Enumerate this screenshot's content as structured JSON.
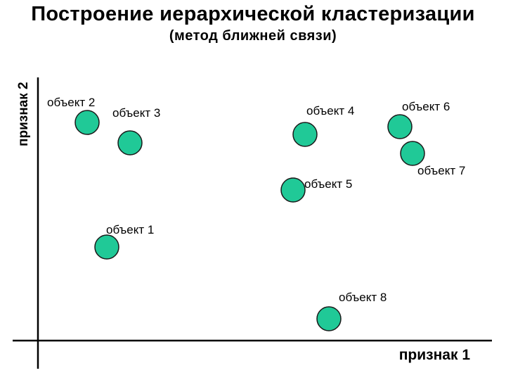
{
  "title": "Построение иерархической кластеризации",
  "subtitle": "(метод ближней связи)",
  "axes": {
    "x_label": "признак 1",
    "y_label": "признак 2"
  },
  "colors": {
    "point_fill": "#20c997",
    "point_stroke": "#1a1a1a",
    "axis": "#000000"
  },
  "objects": [
    {
      "label": "объект 1"
    },
    {
      "label": "объект 2"
    },
    {
      "label": "объект 3"
    },
    {
      "label": "объект 4"
    },
    {
      "label": "объект 5"
    },
    {
      "label": "объект 6"
    },
    {
      "label": "объект 7"
    },
    {
      "label": "объект 8"
    }
  ]
}
